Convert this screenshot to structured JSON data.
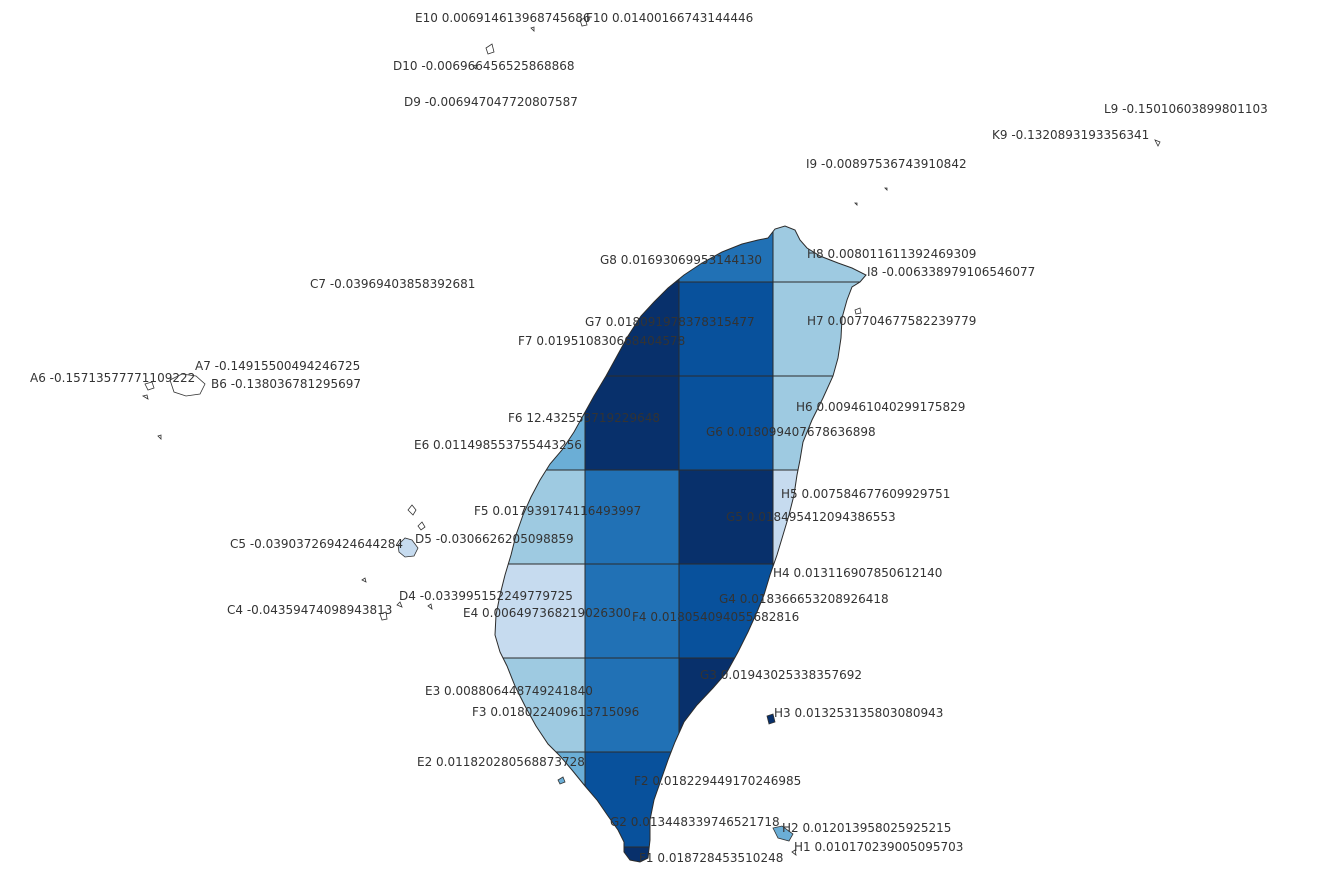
{
  "cells": {
    "E10": {
      "id": "E10",
      "value": "0.006914613968745686"
    },
    "F10": {
      "id": "F10",
      "value": "0.01400166743144446"
    },
    "D10": {
      "id": "D10",
      "value": "-0.006966456525868868"
    },
    "D9": {
      "id": "D9",
      "value": "-0.006947047720807587"
    },
    "L9": {
      "id": "L9",
      "value": "-0.15010603899801103"
    },
    "K9": {
      "id": "K9",
      "value": "-0.1320893193356341"
    },
    "I9": {
      "id": "I9",
      "value": "-0.00897536743910842"
    },
    "H8": {
      "id": "H8",
      "value": "0.008011611392469309"
    },
    "I8": {
      "id": "I8",
      "value": "-0.006338979106546077"
    },
    "G8": {
      "id": "G8",
      "value": "0.01693069953144130"
    },
    "C7": {
      "id": "C7",
      "value": "-0.03969403858392681"
    },
    "G7": {
      "id": "G7",
      "value": "0.018091978378315477"
    },
    "H7": {
      "id": "H7",
      "value": "0.007704677582239779"
    },
    "F7": {
      "id": "F7",
      "value": "0.019510830668404578"
    },
    "A7": {
      "id": "A7",
      "value": "-0.14915500494246725"
    },
    "A6": {
      "id": "A6",
      "value": "-0.15713577771109222"
    },
    "B6": {
      "id": "B6",
      "value": "-0.138036781295697"
    },
    "H6": {
      "id": "H6",
      "value": "0.009461040299175829"
    },
    "F6": {
      "id": "F6",
      "value": "12.432553719229648"
    },
    "G6": {
      "id": "G6",
      "value": "0.018099407678636898"
    },
    "E6": {
      "id": "E6",
      "value": "0.011498553755443256"
    },
    "H5": {
      "id": "H5",
      "value": "0.007584677609929751"
    },
    "F5": {
      "id": "F5",
      "value": "0.017939174116493997"
    },
    "G5": {
      "id": "G5",
      "value": "0.018495412094386553"
    },
    "C5": {
      "id": "C5",
      "value": "-0.039037269424644284"
    },
    "D5": {
      "id": "D5",
      "value": "-0.0306626205098859"
    },
    "H4": {
      "id": "H4",
      "value": "0.013116907850612140"
    },
    "D4": {
      "id": "D4",
      "value": "-0.033995152249779725"
    },
    "G4": {
      "id": "G4",
      "value": "0.018366653208926418"
    },
    "C4": {
      "id": "C4",
      "value": "-0.04359474098943813"
    },
    "E4": {
      "id": "E4",
      "value": "0.006497368219026300"
    },
    "F4": {
      "id": "F4",
      "value": "0.018054094055682816"
    },
    "G3": {
      "id": "G3",
      "value": "0.01943025338357692"
    },
    "E3": {
      "id": "E3",
      "value": "0.008806448749241840"
    },
    "H3": {
      "id": "H3",
      "value": "0.013253135803080943"
    },
    "F3": {
      "id": "F3",
      "value": "0.018022409613715096"
    },
    "E2": {
      "id": "E2",
      "value": "0.011820280568873728"
    },
    "F2": {
      "id": "F2",
      "value": "0.018229449170246985"
    },
    "G2": {
      "id": "G2",
      "value": "0.013448339746521718"
    },
    "H2": {
      "id": "H2",
      "value": "0.012013958025925215"
    },
    "H1": {
      "id": "H1",
      "value": "0.010170239005095703"
    },
    "F1": {
      "id": "F1",
      "value": "0.018728453510248"
    }
  },
  "fill_colors": {
    "darkest": "#08306b",
    "dark": "#08519c",
    "medium": "#2171b5",
    "light": "#6baed6",
    "lighter": "#9ecae1",
    "lightest": "#c6dbef",
    "pale": "#deebf7"
  }
}
